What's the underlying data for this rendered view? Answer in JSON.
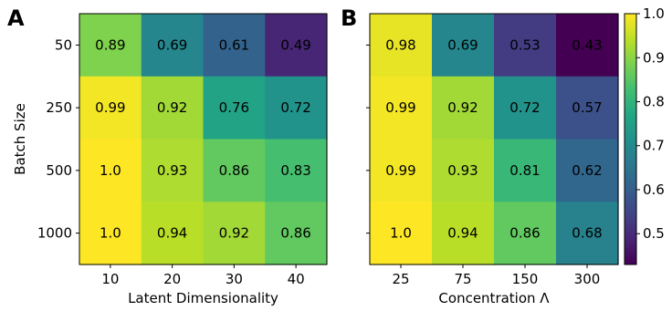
{
  "chart_data": [
    {
      "type": "heatmap",
      "panel_label": "A",
      "title": "",
      "xlabel": "Latent Dimensionality",
      "ylabel": "Batch Size",
      "x_categories": [
        "10",
        "20",
        "30",
        "40"
      ],
      "y_categories": [
        "50",
        "250",
        "500",
        "1000"
      ],
      "values": [
        [
          "0.89",
          "0.69",
          "0.61",
          "0.49"
        ],
        [
          "0.99",
          "0.92",
          "0.76",
          "0.72"
        ],
        [
          "1.0",
          "0.93",
          "0.86",
          "0.83"
        ],
        [
          "1.0",
          "0.94",
          "0.92",
          "0.86"
        ]
      ]
    },
    {
      "type": "heatmap",
      "panel_label": "B",
      "title": "",
      "xlabel": "Concentration Λ",
      "ylabel": "",
      "x_categories": [
        "25",
        "75",
        "150",
        "300"
      ],
      "y_categories": [
        "50",
        "250",
        "500",
        "1000"
      ],
      "values": [
        [
          "0.98",
          "0.69",
          "0.53",
          "0.43"
        ],
        [
          "0.99",
          "0.92",
          "0.72",
          "0.57"
        ],
        [
          "0.99",
          "0.93",
          "0.81",
          "0.62"
        ],
        [
          "1.0",
          "0.94",
          "0.86",
          "0.68"
        ]
      ]
    }
  ],
  "colorbar": {
    "colormap": "viridis",
    "range": [
      0.43,
      1.0
    ],
    "ticks": [
      "0.5",
      "0.6",
      "0.7",
      "0.8",
      "0.9",
      "1.0"
    ]
  }
}
